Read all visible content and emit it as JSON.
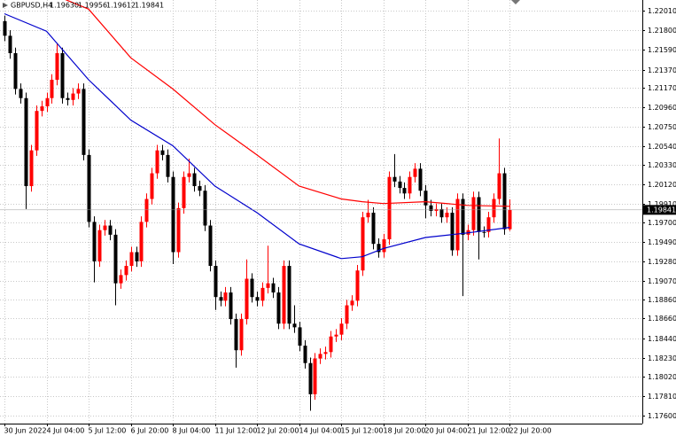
{
  "chart_data": {
    "type": "candlestick",
    "header_symbol": "GBPUSD,H4",
    "header_values": [
      {
        "value": 1.1963,
        "label": "1.19630"
      },
      {
        "value": 1.19956,
        "label": "1.19956"
      },
      {
        "value": 1.19612,
        "label": "1.19612"
      },
      {
        "value": 1.19841,
        "label": "1.19841"
      }
    ],
    "categories": [
      "30 Jun 2022",
      null,
      null,
      null,
      null,
      null,
      null,
      null,
      "4 Jul 04:00",
      null,
      null,
      null,
      null,
      null,
      null,
      null,
      "5 Jul 12:00",
      null,
      null,
      null,
      null,
      null,
      null,
      null,
      "6 Jul 20:00",
      null,
      null,
      null,
      null,
      null,
      null,
      null,
      "8 Jul 04:00",
      null,
      null,
      null,
      null,
      null,
      null,
      null,
      "11 Jul 12:00",
      null,
      null,
      null,
      null,
      null,
      null,
      null,
      "12 Jul 20:00",
      null,
      null,
      null,
      null,
      null,
      null,
      null,
      "14 Jul 04:00",
      null,
      null,
      null,
      null,
      null,
      null,
      null,
      "15 Jul 12:00",
      null,
      null,
      null,
      null,
      null,
      null,
      null,
      "18 Jul 20:00",
      null,
      null,
      null,
      null,
      null,
      null,
      null,
      "20 Jul 04:00",
      null,
      null,
      null,
      null,
      null,
      null,
      null,
      "21 Jul 12:00",
      null,
      null,
      null,
      null,
      null,
      null,
      null,
      "22 Jul 20:00"
    ],
    "open": [
      1.219,
      1.2174,
      1.2155,
      1.2116,
      1.2106,
      1.201,
      1.2049,
      1.2092,
      1.2097,
      1.2106,
      1.2126,
      1.2155,
      1.2106,
      1.2104,
      1.2111,
      1.2116,
      1.2044,
      1.1971,
      1.1928,
      1.1962,
      1.1967,
      1.1957,
      1.1904,
      1.1913,
      1.1923,
      1.1938,
      1.1928,
      1.1971,
      1.1996,
      1.2024,
      1.2049,
      1.2044,
      1.202,
      1.1938,
      1.1986,
      1.202,
      1.2024,
      1.201,
      1.2005,
      1.1967,
      1.1923,
      1.1889,
      1.1885,
      1.1894,
      1.1865,
      1.1831,
      1.1865,
      1.1909,
      1.1889,
      1.1885,
      1.1899,
      1.1904,
      1.1894,
      1.186,
      1.1923,
      1.186,
      1.1856,
      1.1836,
      1.1817,
      1.1783,
      1.1822,
      1.1827,
      1.1829,
      1.1846,
      1.1848,
      1.186,
      1.188,
      1.1885,
      1.1918,
      1.1976,
      1.1981,
      1.1947,
      1.1938,
      1.1952,
      1.202,
      1.2015,
      1.2008,
      1.2002,
      1.202,
      1.2029,
      1.2005,
      1.1989,
      1.1983,
      1.1985,
      1.1976,
      1.1981,
      1.194,
      1.1996,
      1.1957,
      1.1962,
      1.1998,
      1.196,
      1.196,
      1.1976,
      1.1996,
      1.2024,
      1.1963
    ],
    "high": [
      1.2196,
      1.218,
      1.2161,
      1.2122,
      1.2112,
      1.2055,
      1.2098,
      1.2103,
      1.2112,
      1.2132,
      1.2165,
      1.2161,
      1.2112,
      1.2117,
      1.2122,
      1.2122,
      1.205,
      1.1977,
      1.1968,
      1.1973,
      1.1973,
      1.1963,
      1.1919,
      1.1929,
      1.1944,
      1.1944,
      1.1977,
      1.2002,
      1.203,
      1.2055,
      1.2055,
      1.205,
      1.2026,
      1.1992,
      1.2026,
      1.204,
      1.203,
      1.2016,
      1.2011,
      1.1973,
      1.1929,
      1.1895,
      1.19,
      1.19,
      1.1871,
      1.1871,
      1.193,
      1.1915,
      1.1895,
      1.1905,
      1.1945,
      1.191,
      1.19,
      1.1929,
      1.1929,
      1.188,
      1.1862,
      1.1842,
      1.1823,
      1.1828,
      1.1833,
      1.1835,
      1.1852,
      1.1854,
      1.1866,
      1.1886,
      1.1891,
      1.1924,
      1.1982,
      1.1995,
      1.1987,
      1.1953,
      1.1958,
      1.2026,
      1.2045,
      1.2021,
      1.2014,
      1.2026,
      1.2035,
      1.2035,
      1.2011,
      1.1995,
      1.1991,
      1.1991,
      1.1987,
      1.1987,
      1.2002,
      1.2002,
      1.1968,
      1.2004,
      1.2004,
      1.1966,
      1.1982,
      1.2002,
      1.2062,
      1.203,
      1.19956
    ],
    "low": [
      1.2168,
      1.2149,
      1.211,
      1.21,
      1.1985,
      1.2004,
      1.2043,
      1.2086,
      1.2091,
      1.21,
      1.212,
      1.21,
      1.2098,
      1.2098,
      1.2105,
      1.2038,
      1.1965,
      1.1905,
      1.1922,
      1.1956,
      1.1951,
      1.188,
      1.1898,
      1.1907,
      1.1917,
      1.1922,
      1.1922,
      1.1965,
      1.199,
      1.2018,
      1.2038,
      1.2014,
      1.1925,
      1.1932,
      1.198,
      1.2014,
      1.2004,
      1.1999,
      1.1961,
      1.1917,
      1.1875,
      1.1879,
      1.1879,
      1.1859,
      1.1812,
      1.1825,
      1.1859,
      1.1883,
      1.1879,
      1.1879,
      1.1893,
      1.1888,
      1.1854,
      1.1854,
      1.1854,
      1.185,
      1.183,
      1.1811,
      1.1765,
      1.1777,
      1.1816,
      1.1821,
      1.1823,
      1.184,
      1.1842,
      1.1854,
      1.1874,
      1.1879,
      1.1912,
      1.197,
      1.1941,
      1.1932,
      1.1932,
      1.1946,
      1.2009,
      1.2002,
      1.1996,
      1.1996,
      1.2014,
      1.1999,
      1.1975,
      1.1977,
      1.1977,
      1.197,
      1.197,
      1.1934,
      1.1934,
      1.189,
      1.1951,
      1.1956,
      1.193,
      1.1954,
      1.1954,
      1.197,
      1.199,
      1.1957,
      1.19612
    ],
    "close": [
      1.2174,
      1.2155,
      1.2116,
      1.2106,
      1.201,
      1.2049,
      1.2092,
      1.2097,
      1.2106,
      1.2126,
      1.2155,
      1.2106,
      1.2104,
      1.2111,
      1.2116,
      1.2044,
      1.1971,
      1.1928,
      1.1962,
      1.1967,
      1.1957,
      1.1904,
      1.1913,
      1.1923,
      1.1938,
      1.1928,
      1.1971,
      1.1996,
      1.2024,
      1.2049,
      1.2044,
      1.202,
      1.1938,
      1.1986,
      1.202,
      1.2024,
      1.201,
      1.2005,
      1.1967,
      1.1923,
      1.1889,
      1.1885,
      1.1894,
      1.1865,
      1.1831,
      1.1865,
      1.1909,
      1.1889,
      1.1885,
      1.1899,
      1.1904,
      1.1894,
      1.186,
      1.1923,
      1.186,
      1.1856,
      1.1836,
      1.1817,
      1.1783,
      1.1822,
      1.1827,
      1.1829,
      1.1846,
      1.1848,
      1.186,
      1.188,
      1.1885,
      1.1918,
      1.1976,
      1.1981,
      1.1947,
      1.1938,
      1.1952,
      1.202,
      1.2015,
      1.2008,
      1.2002,
      1.202,
      1.2029,
      1.2005,
      1.1989,
      1.1983,
      1.1985,
      1.1976,
      1.1981,
      1.194,
      1.1996,
      1.1957,
      1.1962,
      1.1998,
      1.196,
      1.196,
      1.1976,
      1.1996,
      1.2024,
      1.1963,
      1.19841
    ],
    "up_color": "#ff0000",
    "down_color": "#000000",
    "series": [
      {
        "color": "#ff0000",
        "x": [
          0,
          8,
          16,
          24,
          32,
          40,
          48,
          56,
          64,
          68,
          72,
          80,
          88,
          96
        ],
        "values": [
          1.2235,
          1.2222,
          1.2203,
          1.215,
          1.2116,
          1.2077,
          1.2044,
          1.201,
          1.1996,
          1.1993,
          1.1991,
          1.1993,
          1.1989,
          1.1988
        ]
      },
      {
        "color": "#0000cc",
        "x": [
          0,
          8,
          16,
          24,
          32,
          40,
          48,
          56,
          64,
          68,
          72,
          80,
          88,
          96
        ],
        "values": [
          1.2198,
          1.2179,
          1.2126,
          1.2082,
          1.2054,
          1.201,
          1.1981,
          1.1947,
          1.1931,
          1.1933,
          1.1942,
          1.1954,
          1.1959,
          1.1965
        ]
      }
    ],
    "ylim": [
      1.1751,
      1.2213
    ],
    "yticks": [
      {
        "value": 1.2201,
        "label": "1.22010"
      },
      {
        "value": 1.218,
        "label": "1.21800"
      },
      {
        "value": 1.2159,
        "label": "1.21590"
      },
      {
        "value": 1.2137,
        "label": "1.21370"
      },
      {
        "value": 1.2117,
        "label": "1.21170"
      },
      {
        "value": 1.2096,
        "label": "1.20960"
      },
      {
        "value": 1.2075,
        "label": "1.20750"
      },
      {
        "value": 1.2054,
        "label": "1.20540"
      },
      {
        "value": 1.2033,
        "label": "1.20330"
      },
      {
        "value": 1.2012,
        "label": "1.20120"
      },
      {
        "value": 1.1991,
        "label": "1.19910"
      },
      {
        "value": 1.197,
        "label": "1.19700"
      },
      {
        "value": 1.1949,
        "label": "1.19490"
      },
      {
        "value": 1.1928,
        "label": "1.19280"
      },
      {
        "value": 1.1907,
        "label": "1.19070"
      },
      {
        "value": 1.1886,
        "label": "1.18860"
      },
      {
        "value": 1.1866,
        "label": "1.18660"
      },
      {
        "value": 1.1844,
        "label": "1.18440"
      },
      {
        "value": 1.1823,
        "label": "1.18230"
      },
      {
        "value": 1.1802,
        "label": "1.18020"
      },
      {
        "value": 1.1781,
        "label": "1.17810"
      },
      {
        "value": 1.176,
        "label": "1.17600"
      }
    ],
    "grid": true
  }
}
